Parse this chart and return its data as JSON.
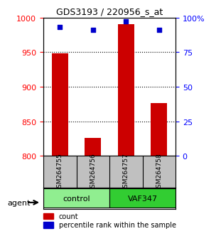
{
  "title": "GDS3193 / 220956_s_at",
  "samples": [
    "GSM264755",
    "GSM264756",
    "GSM264757",
    "GSM264758"
  ],
  "counts": [
    948,
    826,
    990,
    876
  ],
  "percentiles": [
    93,
    91,
    97,
    91
  ],
  "ymin": 800,
  "ymax": 1000,
  "yticks": [
    800,
    850,
    900,
    950,
    1000
  ],
  "pct_ticks": [
    0,
    25,
    50,
    75,
    100
  ],
  "pct_tick_labels": [
    "0",
    "25",
    "50",
    "75",
    "100%"
  ],
  "groups": [
    {
      "label": "control",
      "indices": [
        0,
        1
      ],
      "color": "#90EE90"
    },
    {
      "label": "VAF347",
      "indices": [
        2,
        3
      ],
      "color": "#32CD32"
    }
  ],
  "bar_color": "#CC0000",
  "dot_color": "#0000CC",
  "bar_width": 0.5,
  "agent_label": "agent",
  "legend_count_label": "count",
  "legend_pct_label": "percentile rank within the sample",
  "bg_color": "#F0F0F0",
  "sample_box_color": "#C0C0C0"
}
